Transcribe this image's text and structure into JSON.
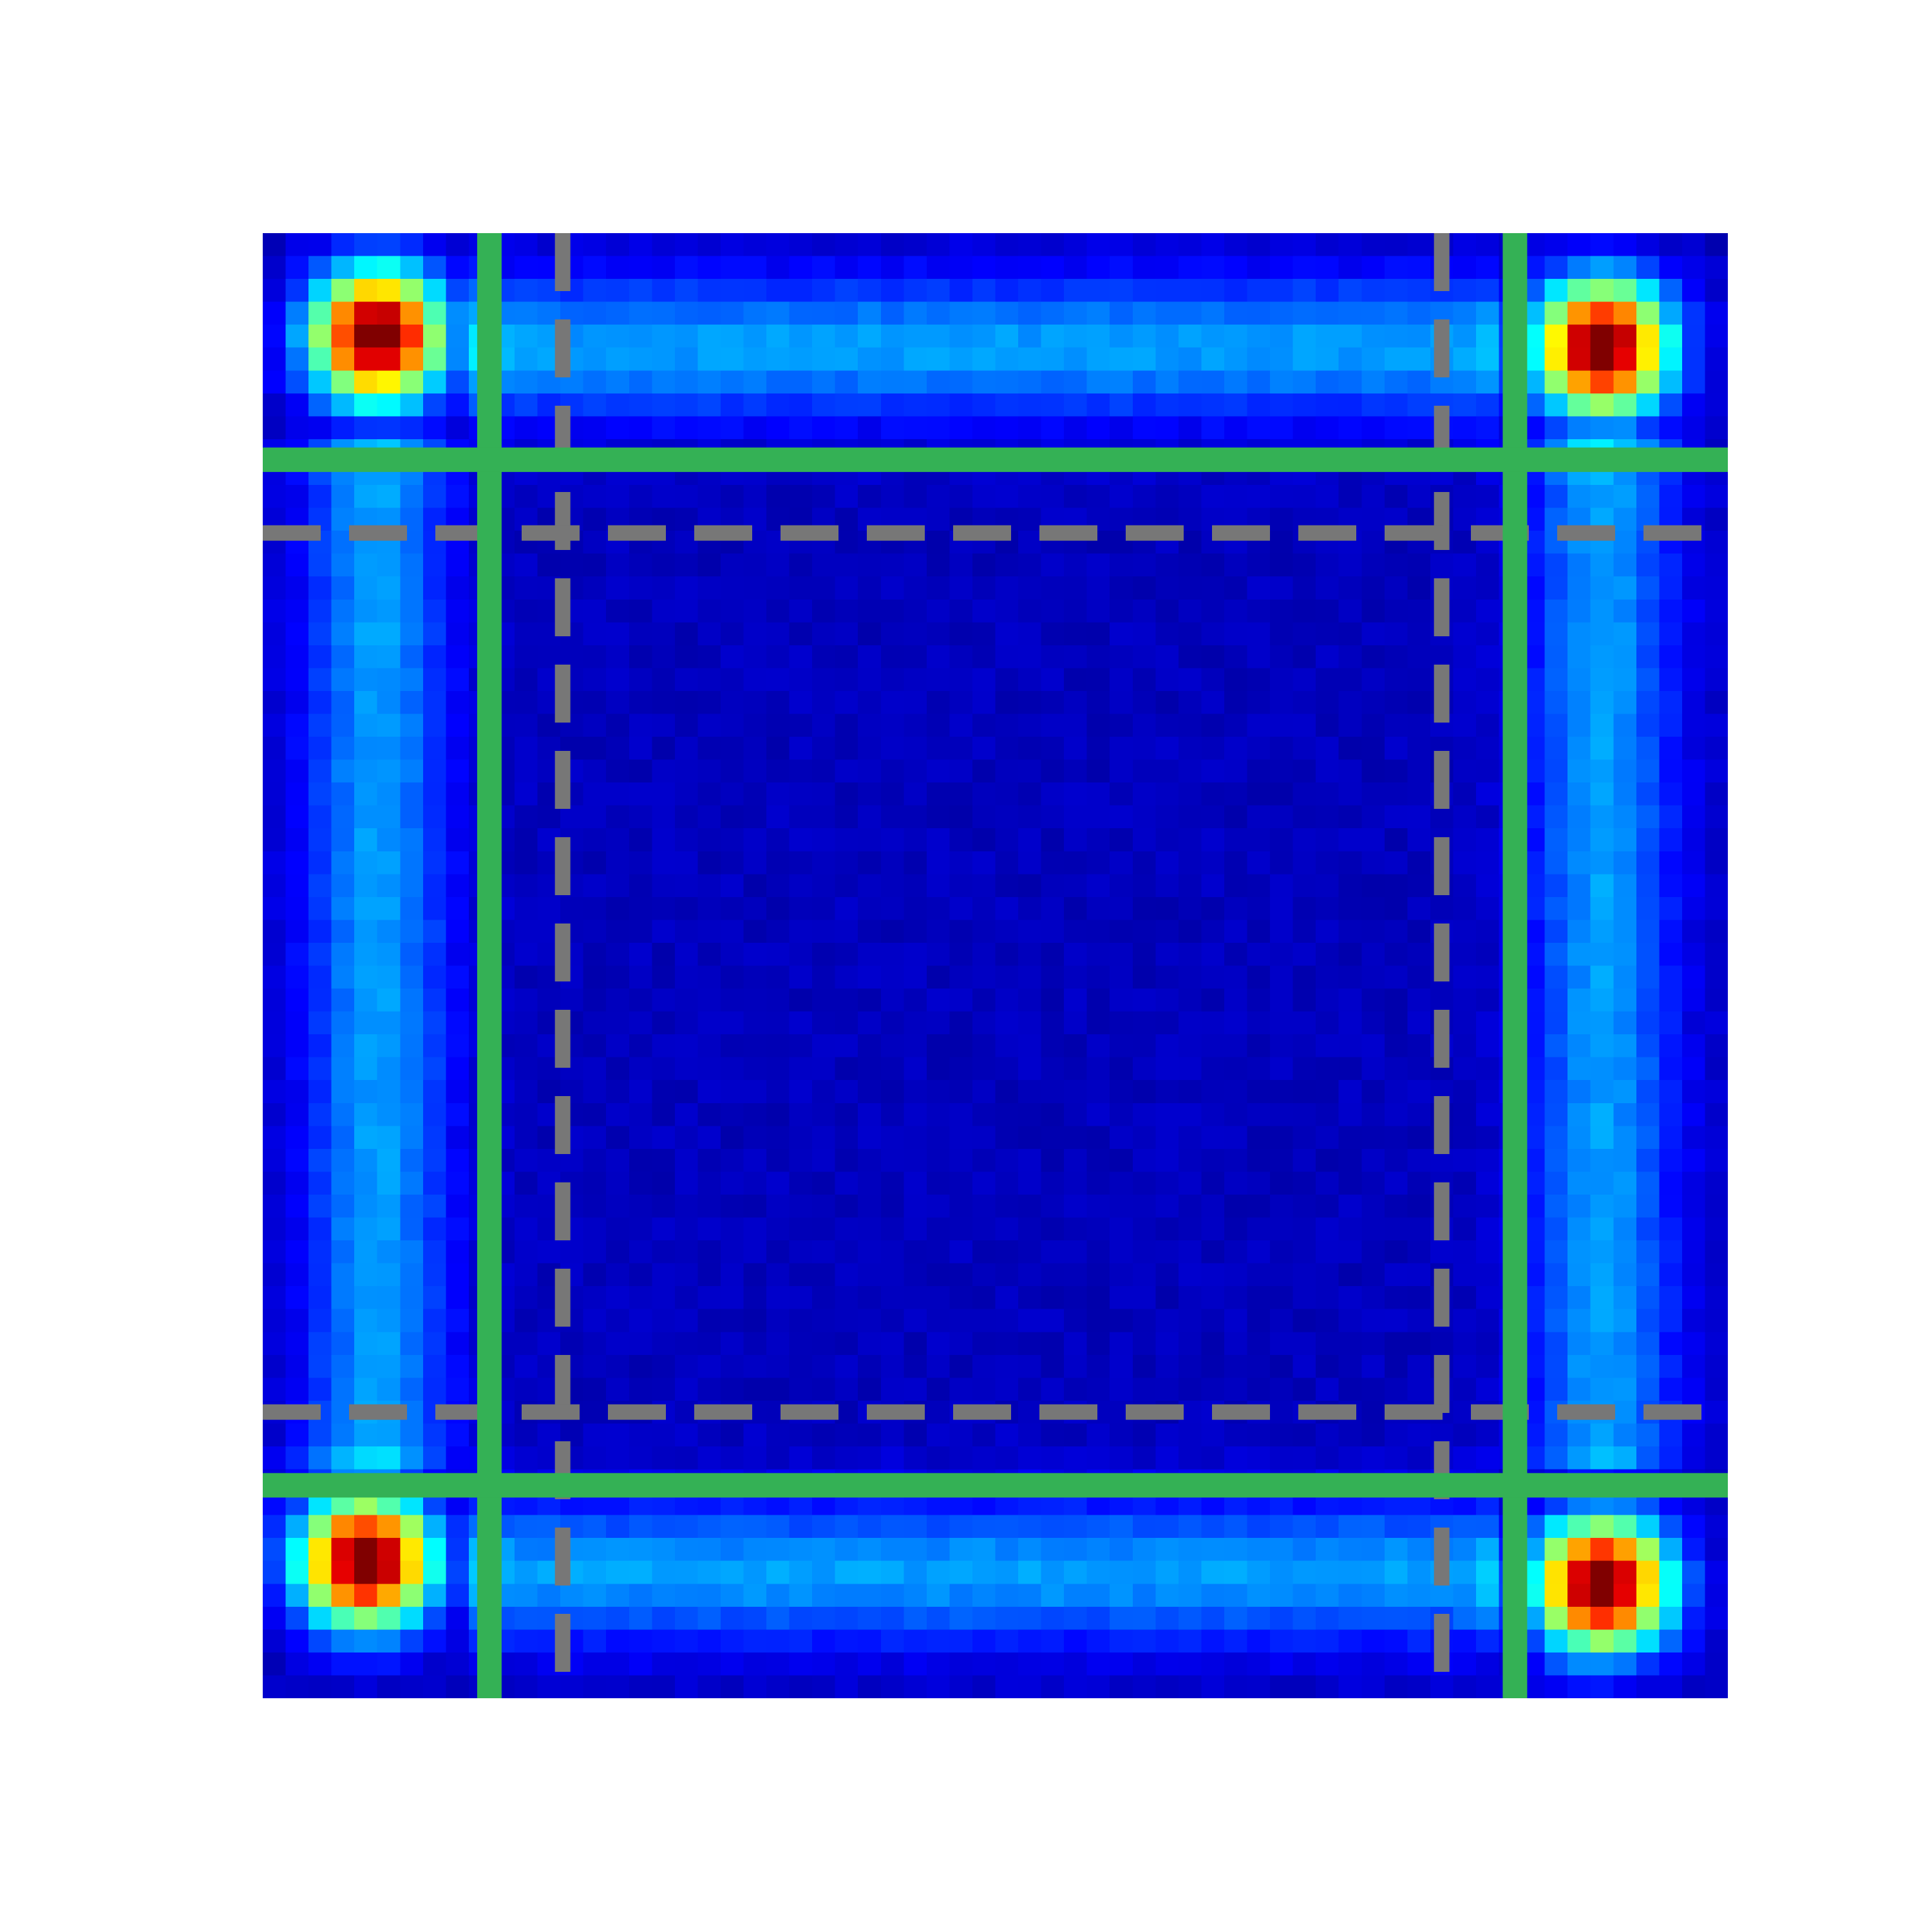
{
  "chart_data": {
    "type": "heatmap",
    "title": "",
    "xlabel": "",
    "ylabel": "",
    "axes_visible": false,
    "grid": false,
    "legend": "none",
    "colormap": "jet",
    "grid_size": [
      64,
      64
    ],
    "value_range": [
      0,
      1
    ],
    "background_level": 0.06,
    "hotspots": [
      {
        "name": "top-left",
        "center": [
          5.0,
          4.5
        ],
        "peak": 1.0,
        "sigma": 2.0
      },
      {
        "name": "top-right",
        "center": [
          58.5,
          5.0
        ],
        "peak": 1.0,
        "sigma": 2.0
      },
      {
        "name": "bottom-left",
        "center": [
          4.5,
          58.0
        ],
        "peak": 1.0,
        "sigma": 2.0
      },
      {
        "name": "bottom-right",
        "center": [
          58.5,
          59.0
        ],
        "peak": 1.0,
        "sigma": 2.0
      }
    ],
    "bands": [
      {
        "orientation": "horizontal",
        "position": 5.0,
        "from": 9,
        "to": 54,
        "level": 0.22,
        "sigma": 2.2
      },
      {
        "orientation": "horizontal",
        "position": 58.5,
        "from": 9,
        "to": 54,
        "level": 0.22,
        "sigma": 2.2
      },
      {
        "orientation": "vertical",
        "position": 5.0,
        "from": 9,
        "to": 54,
        "level": 0.22,
        "sigma": 2.2
      },
      {
        "orientation": "vertical",
        "position": 58.5,
        "from": 9,
        "to": 54,
        "level": 0.22,
        "sigma": 2.2
      }
    ],
    "solid_lines": {
      "color": "#34b155",
      "vertical": [
        9.9,
        54.7
      ],
      "horizontal": [
        9.9,
        54.7
      ]
    },
    "dashed_lines": {
      "color": "#777777",
      "vertical": [
        13.1,
        51.5
      ],
      "horizontal": [
        13.1,
        51.5
      ]
    }
  }
}
